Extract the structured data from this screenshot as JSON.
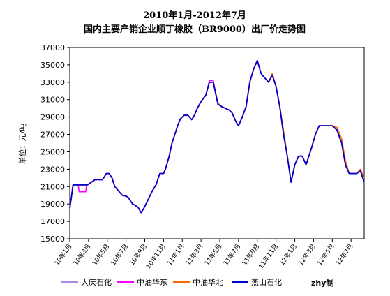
{
  "chart_data": {
    "type": "line",
    "title": "2010年1月-2012年7月",
    "subtitle": "国内主要产销企业顺丁橡胶（BR9000）出厂价走势图",
    "ylabel": "单位：元/吨",
    "ylim": [
      15000,
      37000
    ],
    "ystep": 2000,
    "grid": false,
    "legend_position": "bottom",
    "credit": "zhy制",
    "x_ticks": [
      "10年1月",
      "10年3月",
      "10年5月",
      "10年7月",
      "10年9月",
      "10年11月",
      "11年1月",
      "11年3月",
      "11年5月",
      "11年7月",
      "11年9月",
      "11年11月",
      "12年1月",
      "12年3月",
      "12年5月",
      "12年7月"
    ],
    "x_tick_positions": [
      0,
      2,
      4,
      6,
      8,
      10,
      12,
      14,
      16,
      18,
      20,
      22,
      24,
      26,
      28,
      30
    ],
    "x_range": [
      0,
      31.4
    ],
    "series": [
      {
        "name": "大庆石化",
        "color": "#a98de0",
        "x": [
          0,
          0.15,
          0.35,
          1.0,
          1.05,
          1.8,
          1.9,
          2.7,
          2.9,
          3.3,
          3.5,
          3.9,
          4.2,
          4.5,
          4.8,
          5.6,
          6.0,
          6.2,
          6.7,
          6.9,
          7.3,
          7.6,
          7.9,
          8.4,
          8.8,
          9.2,
          9.6,
          10.0,
          10.2,
          10.6,
          10.9,
          11.5,
          11.8,
          12.2,
          12.6,
          13.0,
          13.3,
          13.6,
          14.0,
          14.5,
          14.9,
          15.3,
          15.8,
          16.2,
          16.6,
          17.0,
          17.3,
          17.7,
          18.0,
          18.4,
          18.8,
          19.2,
          19.6,
          20.0,
          20.4,
          20.8,
          21.2,
          21.6,
          22.0,
          22.4,
          22.8,
          23.2,
          23.6,
          24.0,
          24.4,
          24.8,
          25.2,
          25.8,
          26.2,
          26.6,
          27.0,
          27.5,
          28.0,
          28.5,
          29.0,
          29.4,
          29.8,
          30.2,
          30.6,
          31.0,
          31.4
        ],
        "y": [
          18500,
          19600,
          21200,
          21200,
          21200,
          21200,
          21200,
          21800,
          21800,
          21800,
          21800,
          22500,
          22500,
          22000,
          21000,
          20000,
          19900,
          19800,
          19000,
          18900,
          18600,
          18000,
          18500,
          19600,
          20500,
          21200,
          22500,
          22500,
          23000,
          24500,
          26000,
          28000,
          28800,
          29200,
          29200,
          28700,
          29200,
          30000,
          30800,
          31500,
          33000,
          33000,
          30500,
          30200,
          30000,
          29800,
          29500,
          28500,
          28000,
          29000,
          30200,
          33000,
          34500,
          35500,
          34000,
          33500,
          33000,
          33800,
          32500,
          30200,
          27000,
          24500,
          21500,
          23500,
          24500,
          24500,
          23500,
          25500,
          27000,
          28000,
          28000,
          28000,
          28000,
          27500,
          26000,
          23500,
          22500,
          22500,
          22500,
          22800,
          21500
        ]
      },
      {
        "name": "中油华东",
        "color": "#ff00ff",
        "x": [
          0,
          0.15,
          0.35,
          0.9,
          1.0,
          1.05,
          1.7,
          1.8,
          1.9,
          2.7,
          2.9,
          3.3,
          3.5,
          3.9,
          4.2,
          4.5,
          4.8,
          5.6,
          6.0,
          6.2,
          6.7,
          6.9,
          7.3,
          7.6,
          7.9,
          8.4,
          8.8,
          9.2,
          9.6,
          10.0,
          10.2,
          10.6,
          10.9,
          11.5,
          11.8,
          12.2,
          12.6,
          13.0,
          13.3,
          13.6,
          14.0,
          14.5,
          14.9,
          15.3,
          15.8,
          16.2,
          16.6,
          17.0,
          17.3,
          17.7,
          18.0,
          18.4,
          18.8,
          19.2,
          19.6,
          20.0,
          20.4,
          20.8,
          21.2,
          21.6,
          22.0,
          22.4,
          22.8,
          23.2,
          23.6,
          24.0,
          24.4,
          24.8,
          25.2,
          25.8,
          26.2,
          26.6,
          27.0,
          27.5,
          28.0,
          28.5,
          29.0,
          29.4,
          29.8,
          30.2,
          30.6,
          31.0,
          31.4
        ],
        "y": [
          18500,
          19600,
          21200,
          21200,
          20400,
          20400,
          20400,
          21200,
          21200,
          21800,
          21800,
          21800,
          21800,
          22500,
          22500,
          22000,
          21000,
          20000,
          19900,
          19800,
          19000,
          18900,
          18600,
          18000,
          18500,
          19600,
          20500,
          21200,
          22500,
          22500,
          23000,
          24500,
          26000,
          28000,
          28800,
          29200,
          29200,
          28700,
          29200,
          30000,
          30800,
          31500,
          33200,
          33200,
          30600,
          30200,
          30000,
          29800,
          29500,
          28500,
          28000,
          29000,
          30200,
          33000,
          34500,
          35500,
          34000,
          33500,
          33000,
          34000,
          32500,
          30200,
          27000,
          24500,
          21500,
          23500,
          24500,
          24500,
          23500,
          25500,
          27000,
          28000,
          28000,
          28000,
          28000,
          27500,
          26000,
          23500,
          22500,
          22500,
          22500,
          22800,
          21500
        ]
      },
      {
        "name": "中油华北",
        "color": "#ff6600",
        "x": [
          0,
          0.15,
          0.35,
          1.0,
          1.05,
          1.8,
          1.9,
          2.7,
          2.9,
          3.3,
          3.5,
          3.9,
          4.2,
          4.5,
          4.8,
          5.6,
          6.0,
          6.2,
          6.7,
          6.9,
          7.3,
          7.6,
          7.9,
          8.4,
          8.8,
          9.2,
          9.6,
          10.0,
          10.2,
          10.6,
          10.9,
          11.5,
          11.8,
          12.2,
          12.6,
          13.0,
          13.3,
          13.6,
          14.0,
          14.5,
          14.9,
          15.3,
          15.8,
          16.2,
          16.6,
          17.0,
          17.3,
          17.7,
          18.0,
          18.4,
          18.8,
          19.2,
          19.6,
          20.0,
          20.4,
          20.8,
          21.2,
          21.6,
          22.0,
          22.4,
          22.8,
          23.2,
          23.6,
          24.0,
          24.4,
          24.8,
          25.2,
          25.8,
          26.2,
          26.6,
          27.0,
          27.5,
          28.0,
          28.5,
          29.0,
          29.4,
          29.8,
          30.2,
          30.6,
          31.0,
          31.4
        ],
        "y": [
          18500,
          19600,
          21200,
          21200,
          21200,
          21200,
          21200,
          21800,
          21800,
          21800,
          21800,
          22500,
          22500,
          22000,
          21000,
          20000,
          19900,
          19800,
          19000,
          18900,
          18600,
          18000,
          18500,
          19600,
          20500,
          21200,
          22500,
          22500,
          23000,
          24500,
          26000,
          28000,
          28800,
          29200,
          29200,
          28700,
          29200,
          30000,
          30800,
          31500,
          33000,
          33000,
          30600,
          30200,
          30000,
          29800,
          29500,
          28500,
          28000,
          29000,
          30200,
          33000,
          34500,
          35500,
          34000,
          33500,
          33000,
          34000,
          32500,
          30200,
          27500,
          24500,
          21500,
          23500,
          24500,
          24500,
          23500,
          25500,
          27000,
          28000,
          28000,
          28000,
          28000,
          27800,
          26500,
          24000,
          22500,
          22500,
          22500,
          23000,
          22000
        ]
      },
      {
        "name": "燕山石化",
        "color": "#0000cc",
        "x": [
          0,
          0.15,
          0.35,
          1.0,
          1.05,
          1.8,
          1.9,
          2.7,
          2.9,
          3.3,
          3.5,
          3.9,
          4.2,
          4.5,
          4.8,
          5.6,
          6.0,
          6.2,
          6.7,
          6.9,
          7.3,
          7.6,
          7.9,
          8.4,
          8.8,
          9.2,
          9.6,
          10.0,
          10.2,
          10.6,
          10.9,
          11.5,
          11.8,
          12.2,
          12.6,
          13.0,
          13.3,
          13.6,
          14.0,
          14.5,
          14.9,
          15.3,
          15.8,
          16.2,
          16.6,
          17.0,
          17.3,
          17.7,
          18.0,
          18.4,
          18.8,
          19.2,
          19.6,
          20.0,
          20.4,
          20.8,
          21.2,
          21.6,
          22.0,
          22.4,
          22.8,
          23.2,
          23.6,
          24.0,
          24.4,
          24.8,
          25.2,
          25.8,
          26.2,
          26.6,
          27.0,
          27.5,
          28.0,
          28.5,
          29.0,
          29.4,
          29.8,
          30.2,
          30.6,
          31.0,
          31.4
        ],
        "y": [
          18500,
          19600,
          21200,
          21200,
          21200,
          21200,
          21200,
          21800,
          21800,
          21800,
          21800,
          22500,
          22500,
          22000,
          21000,
          20000,
          19900,
          19800,
          19000,
          18900,
          18600,
          18000,
          18500,
          19600,
          20500,
          21200,
          22500,
          22500,
          23000,
          24500,
          26000,
          28000,
          28800,
          29200,
          29200,
          28700,
          29200,
          30000,
          30800,
          31500,
          33000,
          33000,
          30500,
          30200,
          30000,
          29800,
          29500,
          28500,
          28000,
          29000,
          30200,
          33000,
          34500,
          35500,
          34000,
          33500,
          33000,
          33800,
          32500,
          30200,
          27000,
          24500,
          21500,
          23500,
          24500,
          24500,
          23500,
          25500,
          27000,
          28000,
          28000,
          28000,
          28000,
          27500,
          26000,
          23500,
          22500,
          22500,
          22500,
          22800,
          21500
        ]
      }
    ]
  }
}
